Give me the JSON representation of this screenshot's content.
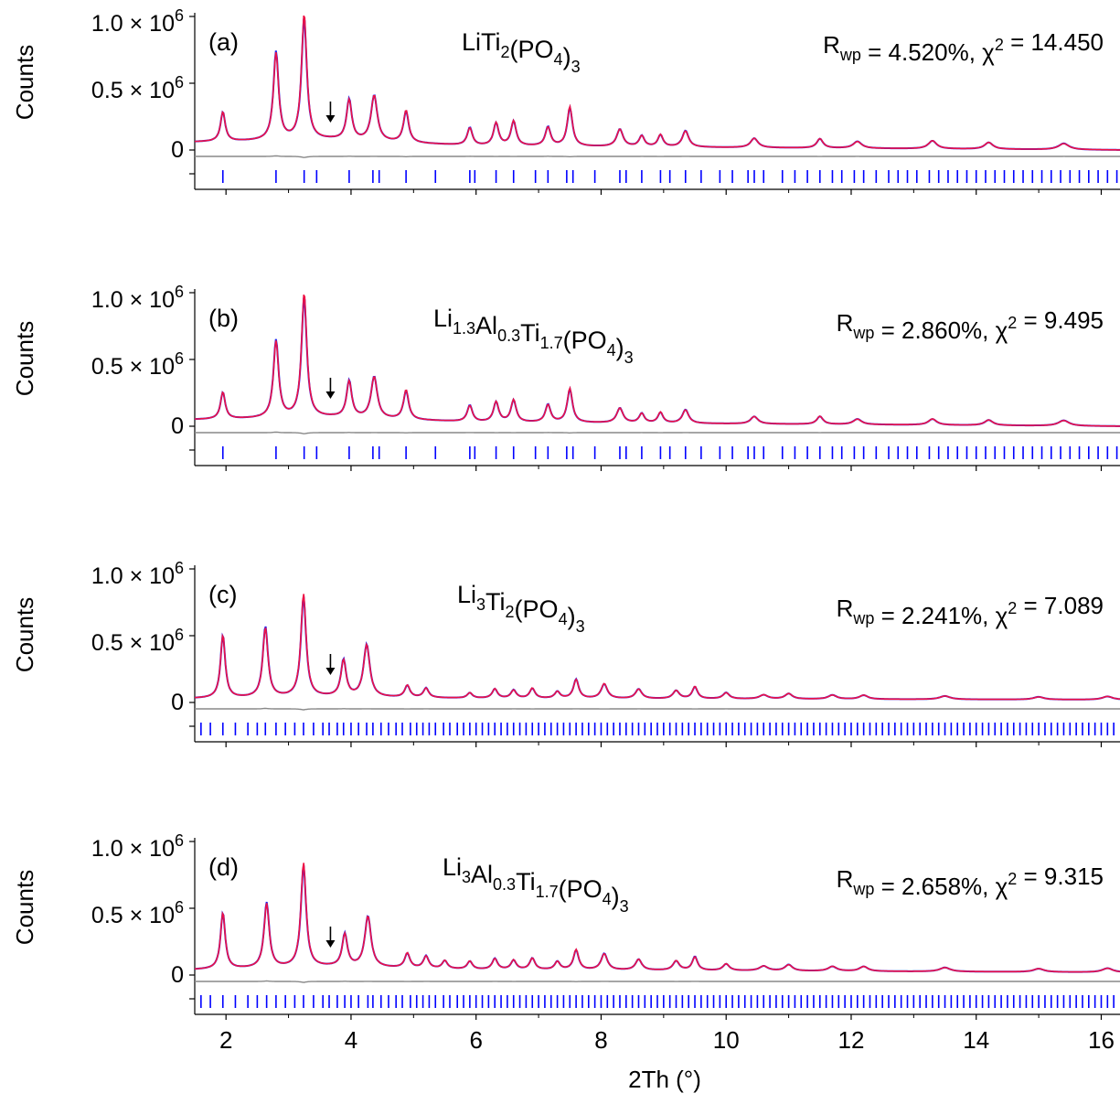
{
  "colors": {
    "observed": "#2222ee",
    "calculated": "#ee1144",
    "difference": "#888888",
    "reflections": "#0000ff",
    "axis": "#000000"
  },
  "chart_data": {
    "type": "line",
    "xlabel": "2Th (°)",
    "xlim": [
      1.5,
      16.3
    ],
    "x_ticks": [
      "2",
      "4",
      "6",
      "8",
      "10",
      "12",
      "14",
      "16"
    ],
    "ylabel": "Counts",
    "y_ticks": [
      {
        "mant": "1.0 × 10",
        "exp": "6"
      },
      {
        "mant": "0.5 × 10",
        "exp": "6"
      },
      {
        "mant": "0",
        "exp": ""
      }
    ],
    "ylim": [
      -200000,
      1050000
    ],
    "legend": "none",
    "annotation": "↓ marker near 2Th ≈ 3.7°",
    "panels": [
      {
        "id": "(a)",
        "formula": [
          [
            "",
            "LiTi"
          ],
          [
            "sub",
            "2"
          ],
          [
            "",
            "(PO"
          ],
          [
            "sub",
            "4"
          ],
          [
            "",
            ")"
          ],
          [
            "sub",
            "3"
          ]
        ],
        "stats": [
          [
            "",
            "R"
          ],
          [
            "sub",
            "wp"
          ],
          [
            "",
            " = 4.520%, χ"
          ],
          [
            "sup",
            "2"
          ],
          [
            "",
            " = 14.450"
          ]
        ],
        "arrow_x": 3.7,
        "background": [
          [
            1.5,
            60000
          ],
          [
            3.7,
            75000
          ],
          [
            6,
            30000
          ],
          [
            16.3,
            0
          ]
        ],
        "peaks": [
          [
            1.95,
            220000,
            0.045
          ],
          [
            2.8,
            650000,
            0.05
          ],
          [
            3.25,
            940000,
            0.05
          ],
          [
            3.97,
            300000,
            0.05
          ],
          [
            4.37,
            340000,
            0.06
          ],
          [
            4.88,
            240000,
            0.05
          ],
          [
            5.9,
            130000,
            0.05
          ],
          [
            6.32,
            170000,
            0.05
          ],
          [
            6.6,
            185000,
            0.05
          ],
          [
            7.15,
            140000,
            0.05
          ],
          [
            7.5,
            295000,
            0.05
          ],
          [
            8.3,
            130000,
            0.06
          ],
          [
            8.65,
            80000,
            0.05
          ],
          [
            8.95,
            90000,
            0.05
          ],
          [
            9.35,
            120000,
            0.06
          ],
          [
            10.45,
            70000,
            0.07
          ],
          [
            11.5,
            70000,
            0.06
          ],
          [
            12.1,
            50000,
            0.08
          ],
          [
            13.3,
            60000,
            0.08
          ],
          [
            14.2,
            50000,
            0.08
          ],
          [
            15.4,
            45000,
            0.1
          ]
        ],
        "reflections": [
          1.95,
          2.8,
          3.25,
          3.45,
          3.97,
          4.35,
          4.45,
          4.88,
          5.35,
          5.9,
          5.98,
          6.32,
          6.6,
          6.95,
          7.15,
          7.45,
          7.55,
          7.9,
          8.3,
          8.4,
          8.65,
          8.95,
          9.1,
          9.35,
          9.6,
          9.9,
          10.1,
          10.35,
          10.45,
          10.6,
          10.9,
          11.1,
          11.3,
          11.5,
          11.7,
          11.85,
          12.05,
          12.2,
          12.4,
          12.6,
          12.75,
          12.9,
          13.05,
          13.25,
          13.4,
          13.55,
          13.7,
          13.85,
          14.0,
          14.15,
          14.3,
          14.45,
          14.6,
          14.75,
          14.9,
          15.05,
          15.2,
          15.35,
          15.5,
          15.65,
          15.8,
          15.95,
          16.1,
          16.25
        ]
      },
      {
        "id": "(b)",
        "formula": [
          [
            "",
            "Li"
          ],
          [
            "sub",
            "1.3"
          ],
          [
            "",
            "Al"
          ],
          [
            "sub",
            "0.3"
          ],
          [
            "",
            "Ti"
          ],
          [
            "sub",
            "1.7"
          ],
          [
            "",
            "(PO"
          ],
          [
            "sub",
            "4"
          ],
          [
            "",
            ")"
          ],
          [
            "sub",
            "3"
          ]
        ],
        "stats": [
          [
            "",
            "R"
          ],
          [
            "sub",
            "wp"
          ],
          [
            "",
            " = 2.860%, χ"
          ],
          [
            "sup",
            "2"
          ],
          [
            "",
            " = 9.495"
          ]
        ],
        "arrow_x": 3.7,
        "background": [
          [
            1.5,
            50000
          ],
          [
            3.7,
            65000
          ],
          [
            6,
            30000
          ],
          [
            16.3,
            0
          ]
        ],
        "peaks": [
          [
            1.95,
            200000,
            0.045
          ],
          [
            2.8,
            570000,
            0.05
          ],
          [
            3.25,
            930000,
            0.05
          ],
          [
            3.97,
            270000,
            0.05
          ],
          [
            4.37,
            310000,
            0.06
          ],
          [
            4.88,
            220000,
            0.05
          ],
          [
            5.9,
            120000,
            0.05
          ],
          [
            6.32,
            150000,
            0.05
          ],
          [
            6.6,
            165000,
            0.05
          ],
          [
            7.15,
            130000,
            0.05
          ],
          [
            7.5,
            255000,
            0.05
          ],
          [
            8.3,
            110000,
            0.06
          ],
          [
            8.65,
            70000,
            0.05
          ],
          [
            8.95,
            80000,
            0.05
          ],
          [
            9.35,
            100000,
            0.06
          ],
          [
            10.45,
            55000,
            0.07
          ],
          [
            11.5,
            60000,
            0.06
          ],
          [
            12.1,
            40000,
            0.08
          ],
          [
            13.3,
            45000,
            0.08
          ],
          [
            14.2,
            40000,
            0.08
          ],
          [
            15.4,
            40000,
            0.1
          ]
        ],
        "reflections": [
          1.95,
          2.8,
          3.25,
          3.45,
          3.97,
          4.35,
          4.45,
          4.88,
          5.35,
          5.9,
          5.98,
          6.32,
          6.6,
          6.95,
          7.15,
          7.45,
          7.55,
          7.9,
          8.3,
          8.4,
          8.65,
          8.95,
          9.1,
          9.35,
          9.6,
          9.9,
          10.1,
          10.35,
          10.45,
          10.6,
          10.9,
          11.1,
          11.3,
          11.5,
          11.7,
          11.85,
          12.05,
          12.2,
          12.4,
          12.6,
          12.75,
          12.9,
          13.05,
          13.25,
          13.4,
          13.55,
          13.7,
          13.85,
          14.0,
          14.15,
          14.3,
          14.45,
          14.6,
          14.75,
          14.9,
          15.05,
          15.2,
          15.35,
          15.5,
          15.65,
          15.8,
          15.95,
          16.1,
          16.25
        ]
      },
      {
        "id": "(c)",
        "formula": [
          [
            "",
            "Li"
          ],
          [
            "sub",
            "3"
          ],
          [
            "",
            "Ti"
          ],
          [
            "sub",
            "2"
          ],
          [
            "",
            "(PO"
          ],
          [
            "sub",
            "4"
          ],
          [
            "",
            ")"
          ],
          [
            "sub",
            "3"
          ]
        ],
        "stats": [
          [
            "",
            "R"
          ],
          [
            "sub",
            "wp"
          ],
          [
            "",
            " = 2.241%, χ"
          ],
          [
            "sup",
            "2"
          ],
          [
            "",
            " = 7.089"
          ]
        ],
        "arrow_x": 3.7,
        "background": [
          [
            1.5,
            30000
          ],
          [
            3.7,
            40000
          ],
          [
            6,
            30000
          ],
          [
            16.3,
            20000
          ]
        ],
        "peaks": [
          [
            1.95,
            470000,
            0.045
          ],
          [
            2.63,
            520000,
            0.05
          ],
          [
            3.24,
            770000,
            0.05
          ],
          [
            3.88,
            270000,
            0.05
          ],
          [
            4.25,
            390000,
            0.06
          ],
          [
            4.9,
            90000,
            0.05
          ],
          [
            5.2,
            70000,
            0.05
          ],
          [
            5.9,
            40000,
            0.05
          ],
          [
            6.3,
            70000,
            0.05
          ],
          [
            6.6,
            60000,
            0.05
          ],
          [
            6.9,
            75000,
            0.05
          ],
          [
            7.3,
            50000,
            0.05
          ],
          [
            7.6,
            140000,
            0.05
          ],
          [
            8.05,
            110000,
            0.06
          ],
          [
            8.6,
            70000,
            0.06
          ],
          [
            9.2,
            60000,
            0.06
          ],
          [
            9.5,
            90000,
            0.05
          ],
          [
            10.0,
            45000,
            0.06
          ],
          [
            10.6,
            30000,
            0.08
          ],
          [
            11.0,
            40000,
            0.07
          ],
          [
            11.7,
            30000,
            0.08
          ],
          [
            12.2,
            30000,
            0.08
          ],
          [
            13.5,
            25000,
            0.1
          ],
          [
            15.0,
            20000,
            0.1
          ],
          [
            16.1,
            25000,
            0.1
          ]
        ],
        "reflections": [
          1.6,
          1.75,
          1.95,
          2.15,
          2.35,
          2.5,
          2.63,
          2.8,
          2.95,
          3.1,
          3.24,
          3.4,
          3.55,
          3.65,
          3.78,
          3.88,
          4.0,
          4.12,
          4.25,
          4.35,
          4.48,
          4.6,
          4.72,
          4.82,
          4.95,
          5.05,
          5.15,
          5.25,
          5.35,
          5.48,
          5.58,
          5.7,
          5.8,
          5.9,
          6.0,
          6.1,
          6.2,
          6.3,
          6.4,
          6.5,
          6.6,
          6.7,
          6.8,
          6.9,
          7.0,
          7.1,
          7.2,
          7.3,
          7.4,
          7.5,
          7.6,
          7.7,
          7.8,
          7.9,
          8.0,
          8.1,
          8.2,
          8.3,
          8.4,
          8.5,
          8.6,
          8.7,
          8.8,
          8.9,
          9.0,
          9.1,
          9.2,
          9.3,
          9.4,
          9.5,
          9.6,
          9.7,
          9.8,
          9.9,
          10.0,
          10.1,
          10.2,
          10.3,
          10.4,
          10.5,
          10.6,
          10.7,
          10.8,
          10.9,
          11.0,
          11.1,
          11.2,
          11.3,
          11.4,
          11.5,
          11.6,
          11.7,
          11.8,
          11.9,
          12.0,
          12.1,
          12.2,
          12.3,
          12.4,
          12.5,
          12.6,
          12.7,
          12.8,
          12.9,
          13.0,
          13.1,
          13.2,
          13.3,
          13.4,
          13.5,
          13.6,
          13.7,
          13.8,
          13.9,
          14.0,
          14.1,
          14.2,
          14.3,
          14.4,
          14.5,
          14.6,
          14.7,
          14.8,
          14.9,
          15.0,
          15.1,
          15.2,
          15.3,
          15.4,
          15.5,
          15.6,
          15.7,
          15.8,
          15.9,
          16.0,
          16.1,
          16.2
        ]
      },
      {
        "id": "(d)",
        "formula": [
          [
            "",
            "Li"
          ],
          [
            "sub",
            "3"
          ],
          [
            "",
            "Al"
          ],
          [
            "sub",
            "0.3"
          ],
          [
            "",
            "Ti"
          ],
          [
            "sub",
            "1.7"
          ],
          [
            "",
            "(PO"
          ],
          [
            "sub",
            "4"
          ],
          [
            "",
            ")"
          ],
          [
            "sub",
            "3"
          ]
        ],
        "stats": [
          [
            "",
            "R"
          ],
          [
            "sub",
            "wp"
          ],
          [
            "",
            " = 2.658%, χ"
          ],
          [
            "sup",
            "2"
          ],
          [
            "",
            " = 9.315"
          ]
        ],
        "arrow_x": 3.7,
        "background": [
          [
            1.5,
            40000
          ],
          [
            3.7,
            60000
          ],
          [
            6,
            40000
          ],
          [
            16.3,
            20000
          ]
        ],
        "peaks": [
          [
            1.95,
            420000,
            0.045
          ],
          [
            2.65,
            480000,
            0.05
          ],
          [
            3.24,
            780000,
            0.05
          ],
          [
            3.9,
            240000,
            0.05
          ],
          [
            4.27,
            380000,
            0.06
          ],
          [
            4.9,
            110000,
            0.05
          ],
          [
            5.2,
            90000,
            0.05
          ],
          [
            5.5,
            60000,
            0.05
          ],
          [
            5.9,
            60000,
            0.05
          ],
          [
            6.3,
            80000,
            0.05
          ],
          [
            6.6,
            70000,
            0.05
          ],
          [
            6.9,
            85000,
            0.05
          ],
          [
            7.3,
            60000,
            0.05
          ],
          [
            7.6,
            150000,
            0.05
          ],
          [
            8.05,
            120000,
            0.06
          ],
          [
            8.6,
            80000,
            0.06
          ],
          [
            9.2,
            70000,
            0.06
          ],
          [
            9.5,
            100000,
            0.05
          ],
          [
            10.0,
            50000,
            0.06
          ],
          [
            10.6,
            35000,
            0.08
          ],
          [
            11.0,
            45000,
            0.07
          ],
          [
            11.7,
            35000,
            0.08
          ],
          [
            12.2,
            35000,
            0.08
          ],
          [
            13.5,
            30000,
            0.1
          ],
          [
            15.0,
            25000,
            0.1
          ],
          [
            16.1,
            30000,
            0.1
          ]
        ],
        "reflections": [
          1.6,
          1.75,
          1.95,
          2.15,
          2.35,
          2.5,
          2.65,
          2.8,
          2.95,
          3.1,
          3.24,
          3.4,
          3.55,
          3.65,
          3.78,
          3.9,
          4.0,
          4.12,
          4.27,
          4.35,
          4.48,
          4.6,
          4.72,
          4.82,
          4.95,
          5.05,
          5.15,
          5.25,
          5.35,
          5.48,
          5.58,
          5.7,
          5.8,
          5.9,
          6.0,
          6.1,
          6.2,
          6.3,
          6.4,
          6.5,
          6.6,
          6.7,
          6.8,
          6.9,
          7.0,
          7.1,
          7.2,
          7.3,
          7.4,
          7.5,
          7.6,
          7.7,
          7.8,
          7.9,
          8.0,
          8.1,
          8.2,
          8.3,
          8.4,
          8.5,
          8.6,
          8.7,
          8.8,
          8.9,
          9.0,
          9.1,
          9.2,
          9.3,
          9.4,
          9.5,
          9.6,
          9.7,
          9.8,
          9.9,
          10.0,
          10.1,
          10.2,
          10.3,
          10.4,
          10.5,
          10.6,
          10.7,
          10.8,
          10.9,
          11.0,
          11.1,
          11.2,
          11.3,
          11.4,
          11.5,
          11.6,
          11.7,
          11.8,
          11.9,
          12.0,
          12.1,
          12.2,
          12.3,
          12.4,
          12.5,
          12.6,
          12.7,
          12.8,
          12.9,
          13.0,
          13.1,
          13.2,
          13.3,
          13.4,
          13.5,
          13.6,
          13.7,
          13.8,
          13.9,
          14.0,
          14.1,
          14.2,
          14.3,
          14.4,
          14.5,
          14.6,
          14.7,
          14.8,
          14.9,
          15.0,
          15.1,
          15.2,
          15.3,
          15.4,
          15.5,
          15.6,
          15.7,
          15.8,
          15.9,
          16.0,
          16.1,
          16.2
        ]
      }
    ]
  }
}
